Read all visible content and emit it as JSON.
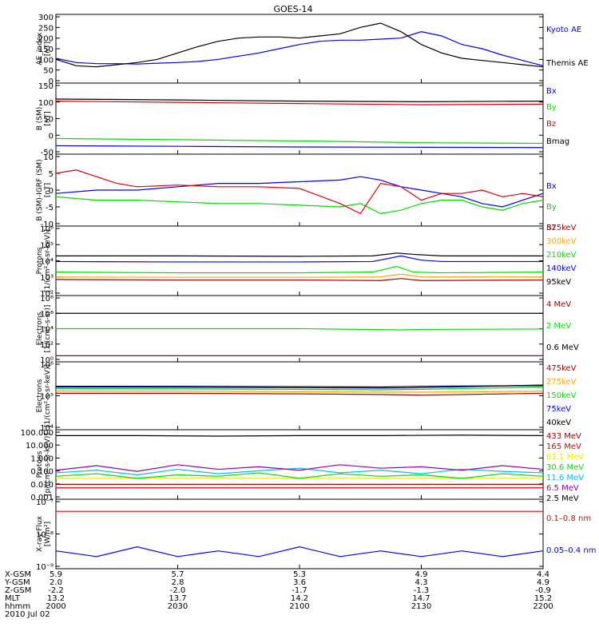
{
  "title": "GOES-14",
  "colors": {
    "black": "#000000",
    "blue": "#0000ff",
    "green": "#00dd00",
    "red": "#dd0000",
    "orange": "#ffa500",
    "yellow": "#e8e800",
    "cyan": "#00bbff",
    "darkred": "#aa0000",
    "purple": "#9900aa"
  },
  "chart_data": [
    {
      "type": "line",
      "panel": "ae",
      "ylabel": [
        "AE_index",
        "[nT]"
      ],
      "ylim": [
        0,
        300
      ],
      "yticks": [
        "0",
        "50",
        "100",
        "150",
        "200",
        "250",
        "300"
      ],
      "series": [
        {
          "name": "Kyoto AE",
          "color": "blue",
          "x": [
            0,
            5,
            10,
            15,
            20,
            25,
            30,
            35,
            40,
            45,
            50,
            55,
            60,
            65,
            70,
            75,
            80,
            85,
            90,
            95,
            100,
            105,
            110,
            115,
            120
          ],
          "y": [
            105,
            85,
            80,
            80,
            78,
            82,
            85,
            90,
            100,
            115,
            130,
            150,
            170,
            185,
            190,
            190,
            195,
            200,
            230,
            210,
            170,
            150,
            120,
            95,
            70
          ]
        },
        {
          "name": "Themis AE",
          "color": "black",
          "x": [
            0,
            5,
            10,
            15,
            20,
            25,
            30,
            35,
            40,
            45,
            50,
            55,
            60,
            65,
            70,
            75,
            80,
            85,
            90,
            95,
            100,
            105,
            110,
            115,
            120
          ],
          "y": [
            100,
            70,
            65,
            75,
            85,
            100,
            130,
            160,
            185,
            200,
            205,
            205,
            200,
            210,
            220,
            250,
            270,
            230,
            170,
            130,
            105,
            95,
            85,
            75,
            65
          ]
        }
      ]
    },
    {
      "type": "line",
      "panel": "bsm",
      "ylabel": [
        "B (SM)",
        "[nT]"
      ],
      "ylim": [
        -60,
        160
      ],
      "yticks": [
        "-50",
        "0",
        "50",
        "100",
        "150"
      ],
      "series": [
        {
          "name": "Bx",
          "color": "blue",
          "x": [
            0,
            30,
            60,
            90,
            120
          ],
          "y": [
            -40,
            -42,
            -44,
            -45,
            -46
          ]
        },
        {
          "name": "By",
          "color": "green",
          "x": [
            0,
            30,
            60,
            90,
            120
          ],
          "y": [
            -16,
            -20,
            -24,
            -30,
            -32
          ]
        },
        {
          "name": "Bz",
          "color": "red",
          "x": [
            0,
            30,
            60,
            90,
            120
          ],
          "y": [
            108,
            104,
            100,
            96,
            98
          ]
        },
        {
          "name": "Bmag",
          "color": "black",
          "x": [
            0,
            30,
            60,
            90,
            120
          ],
          "y": [
            115,
            112,
            108,
            106,
            108
          ]
        }
      ]
    },
    {
      "type": "line",
      "panel": "bigrf",
      "ylabel": [
        "B (SM)-IGRF (SM)",
        "[nT]"
      ],
      "ylim": [
        -10,
        10
      ],
      "yticks": [
        "-10",
        "-5",
        "0",
        "5",
        "10"
      ],
      "series": [
        {
          "name": "Bx",
          "color": "blue",
          "x": [
            0,
            10,
            20,
            30,
            40,
            50,
            60,
            70,
            75,
            80,
            85,
            90,
            95,
            100,
            105,
            110,
            115,
            120
          ],
          "y": [
            -1,
            0,
            0,
            1,
            2,
            2,
            2.5,
            3,
            4,
            3,
            1,
            0,
            -1,
            -2,
            -4,
            -5,
            -3,
            -1
          ]
        },
        {
          "name": "By",
          "color": "green",
          "x": [
            0,
            10,
            20,
            30,
            40,
            50,
            60,
            70,
            75,
            80,
            85,
            90,
            95,
            100,
            105,
            110,
            115,
            120
          ],
          "y": [
            -2,
            -3,
            -3,
            -3.5,
            -4,
            -4,
            -4.5,
            -5,
            -4,
            -7,
            -6,
            -4,
            -3,
            -3,
            -5,
            -6,
            -4,
            -3
          ]
        },
        {
          "name": "Bz",
          "color": "red",
          "x": [
            0,
            5,
            10,
            15,
            20,
            30,
            40,
            50,
            60,
            70,
            75,
            80,
            85,
            90,
            95,
            100,
            105,
            110,
            115,
            120
          ],
          "y": [
            5,
            6,
            4,
            2,
            1,
            1.5,
            1,
            1,
            0.5,
            -4,
            -7,
            2,
            1,
            -3,
            -1,
            -1,
            0,
            -2,
            -1,
            -2
          ]
        }
      ]
    },
    {
      "type": "line",
      "panel": "protons1",
      "yscale": "log",
      "ylabel": [
        "Protons",
        "[1/(cm²-s-sr-keV)]"
      ],
      "ylim": [
        100,
        1000000
      ],
      "yticks": [
        "10²",
        "10³",
        "10⁴",
        "10⁵",
        "10⁶"
      ],
      "series": [
        {
          "name": "575keV",
          "color": "darkred",
          "x": [
            0,
            30,
            60,
            80,
            85,
            90,
            120
          ],
          "y": [
            700,
            650,
            650,
            600,
            800,
            600,
            650
          ]
        },
        {
          "name": "300keV",
          "color": "orange",
          "x": [
            0,
            30,
            60,
            80,
            85,
            90,
            120
          ],
          "y": [
            1000,
            950,
            950,
            1000,
            1500,
            1000,
            1000
          ]
        },
        {
          "name": "210keV",
          "color": "green",
          "x": [
            0,
            30,
            60,
            78,
            84,
            88,
            95,
            120
          ],
          "y": [
            2000,
            1800,
            1800,
            2000,
            4500,
            2000,
            1800,
            2000
          ]
        },
        {
          "name": "140keV",
          "color": "blue",
          "x": [
            0,
            30,
            60,
            78,
            85,
            90,
            95,
            120
          ],
          "y": [
            9000,
            8500,
            8500,
            9000,
            20000,
            11000,
            9000,
            9000
          ]
        },
        {
          "name": "95keV",
          "color": "black",
          "x": [
            0,
            30,
            60,
            78,
            84,
            88,
            95,
            120
          ],
          "y": [
            20000,
            20000,
            19000,
            20000,
            30000,
            25000,
            20000,
            20000
          ]
        }
      ]
    },
    {
      "type": "line",
      "panel": "electrons1",
      "yscale": "log",
      "ylabel": [
        "Electrons",
        "[1/(cm²-s-sr)]"
      ],
      "ylim": [
        1,
        100000000
      ],
      "yticks": [
        "10⁰",
        "10²",
        "10⁴",
        "10⁶",
        "10⁸"
      ],
      "series": [
        {
          "name": "4 MeV",
          "color": "darkred",
          "x": [
            0,
            30,
            60,
            90,
            120
          ],
          "y": [
            3,
            3,
            3,
            3,
            3
          ]
        },
        {
          "name": "2 MeV",
          "color": "green",
          "x": [
            0,
            30,
            60,
            85,
            90,
            120
          ],
          "y": [
            10000,
            10000,
            10000,
            7000,
            8000,
            9000
          ]
        },
        {
          "name": "0.6 MeV",
          "color": "black",
          "x": [
            0,
            30,
            60,
            90,
            120
          ],
          "y": [
            1000000,
            1000000,
            1000000,
            1000000,
            1000000
          ]
        }
      ]
    },
    {
      "type": "line",
      "panel": "electrons2",
      "yscale": "log",
      "ylabel": [
        "Electrons",
        "[1/(cm²-s-sr-keV)]"
      ],
      "ylim": [
        10000,
        1000000
      ],
      "yticks": [
        "10⁴",
        "10⁵",
        "10⁶"
      ],
      "series": [
        {
          "name": "475keV",
          "color": "darkred",
          "x": [
            0,
            30,
            60,
            80,
            90,
            120
          ],
          "y": [
            120000,
            120000,
            115000,
            110000,
            105000,
            120000
          ]
        },
        {
          "name": "275keV",
          "color": "orange",
          "x": [
            0,
            30,
            60,
            80,
            90,
            120
          ],
          "y": [
            140000,
            140000,
            135000,
            130000,
            130000,
            140000
          ]
        },
        {
          "name": "150keV",
          "color": "green",
          "x": [
            0,
            30,
            60,
            80,
            90,
            120
          ],
          "y": [
            170000,
            165000,
            160000,
            155000,
            160000,
            190000
          ]
        },
        {
          "name": "75keV",
          "color": "blue",
          "x": [
            0,
            30,
            60,
            80,
            90,
            120
          ],
          "y": [
            190000,
            185000,
            180000,
            175000,
            180000,
            220000
          ]
        },
        {
          "name": "40keV",
          "color": "black",
          "x": [
            0,
            30,
            60,
            80,
            90,
            120
          ],
          "y": [
            200000,
            200000,
            195000,
            190000,
            200000,
            210000
          ]
        }
      ]
    },
    {
      "type": "line",
      "panel": "protons2",
      "yscale": "log",
      "ylabel": [
        "Protons",
        "[p/(cm²-s-sr-keV)]"
      ],
      "ylim": [
        0.0005,
        200
      ],
      "yticks": [
        "0.001",
        "0.010",
        "0.100",
        "1.000",
        "10.000",
        "100.000"
      ],
      "series": [
        {
          "name": "433 MeV",
          "color": "darkred",
          "x": [
            0,
            60,
            120
          ],
          "y": [
            0.006,
            0.006,
            0.006
          ]
        },
        {
          "name": "165 MeV",
          "color": "red",
          "x": [
            0,
            60,
            120
          ],
          "y": [
            0.003,
            0.003,
            0.003
          ]
        },
        {
          "name": "63.1 MeV",
          "color": "yellow",
          "x": [
            0,
            60,
            120
          ],
          "y": [
            0.02,
            0.02,
            0.02
          ]
        },
        {
          "name": "30.6 MeV",
          "color": "green",
          "x": [
            0,
            10,
            20,
            30,
            40,
            50,
            60,
            70,
            80,
            90,
            100,
            110,
            120
          ],
          "y": [
            0.03,
            0.05,
            0.02,
            0.04,
            0.03,
            0.06,
            0.02,
            0.05,
            0.03,
            0.04,
            0.02,
            0.05,
            0.03
          ]
        },
        {
          "name": "11.6 MeV",
          "color": "cyan",
          "x": [
            0,
            10,
            20,
            30,
            40,
            50,
            60,
            70,
            80,
            90,
            100,
            110,
            120
          ],
          "y": [
            0.06,
            0.1,
            0.04,
            0.12,
            0.05,
            0.09,
            0.15,
            0.06,
            0.1,
            0.05,
            0.12,
            0.08,
            0.06
          ]
        },
        {
          "name": "6.5 MeV",
          "color": "purple",
          "x": [
            0,
            10,
            20,
            30,
            40,
            50,
            60,
            70,
            80,
            90,
            100,
            110,
            120
          ],
          "y": [
            0.1,
            0.25,
            0.08,
            0.3,
            0.12,
            0.2,
            0.1,
            0.3,
            0.15,
            0.2,
            0.1,
            0.25,
            0.12
          ]
        },
        {
          "name": "2.5 MeV",
          "color": "black",
          "x": [
            0,
            20,
            40,
            60,
            80,
            100,
            120
          ],
          "y": [
            100,
            100,
            90,
            100,
            100,
            110,
            100
          ]
        }
      ]
    },
    {
      "type": "line",
      "panel": "xray",
      "yscale": "log",
      "ylabel": [
        "X-ray Flux",
        "[W/m²]"
      ],
      "ylim": [
        1e-09,
        1e-07
      ],
      "yticks": [
        "10⁻⁹",
        "10⁻⁸",
        "10⁻⁷"
      ],
      "series": [
        {
          "name": "0.1–0.8 nm",
          "color": "red",
          "x": [
            0,
            30,
            60,
            90,
            120
          ],
          "y": [
            5e-08,
            5e-08,
            5e-08,
            5e-08,
            5e-08
          ]
        },
        {
          "name": "0.05–0.4 nm",
          "color": "blue",
          "x": [
            0,
            10,
            20,
            30,
            40,
            50,
            60,
            70,
            80,
            90,
            100,
            110,
            120
          ],
          "y": [
            3e-09,
            2e-09,
            4e-09,
            2e-09,
            3e-09,
            2e-09,
            4e-09,
            2e-09,
            3e-09,
            2e-09,
            3e-09,
            2e-09,
            3e-09
          ]
        }
      ]
    }
  ],
  "xaxis": {
    "labels": [
      "X-GSM",
      "Y-GSM",
      "Z-GSM",
      "MLT",
      "hhmm"
    ],
    "date": "2010 Jul 02",
    "columns": [
      [
        "5.9",
        "2.0",
        "-2.2",
        "13.2",
        "2000"
      ],
      [
        "5.7",
        "2.8",
        "-2.0",
        "13.7",
        "2030"
      ],
      [
        "5.3",
        "3.6",
        "-1.7",
        "14.2",
        "2100"
      ],
      [
        "4.9",
        "4.3",
        "-1.3",
        "14.7",
        "2130"
      ],
      [
        "4.4",
        "4.9",
        "-0.9",
        "15.2",
        "2200"
      ]
    ]
  }
}
